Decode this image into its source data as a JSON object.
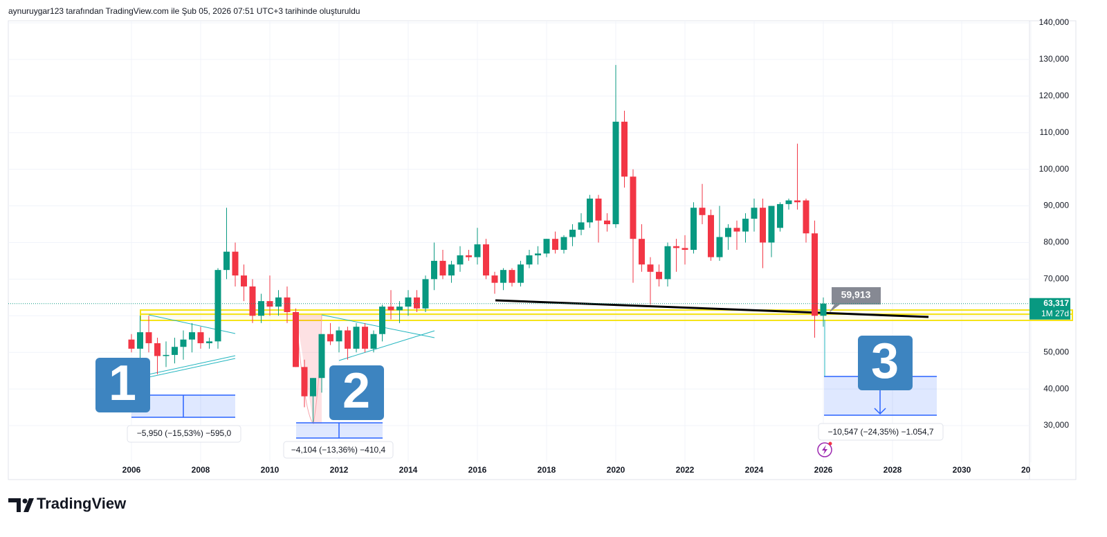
{
  "header": {
    "text": "aynuruygar123 tarafından TradingView.com ile Şub 05, 2026 07:51 UTC+3 tarihinde oluşturuldu"
  },
  "footer": {
    "logo": "TradingView"
  },
  "chart_data": {
    "type": "candlestick",
    "up_color": "#089981",
    "down_color": "#f23645",
    "grid": true,
    "x": [
      2006,
      2006.25,
      2006.5,
      2006.75,
      2007,
      2007.25,
      2007.5,
      2007.75,
      2008,
      2008.25,
      2008.5,
      2008.75,
      2009,
      2009.25,
      2009.5,
      2009.75,
      2010,
      2010.25,
      2010.5,
      2010.75,
      2011,
      2011.25,
      2011.5,
      2011.75,
      2012,
      2012.25,
      2012.5,
      2012.75,
      2013,
      2013.25,
      2013.5,
      2013.75,
      2014,
      2014.25,
      2014.5,
      2014.75,
      2015,
      2015.25,
      2015.5,
      2015.75,
      2016,
      2016.25,
      2016.5,
      2016.75,
      2017,
      2017.25,
      2017.5,
      2017.75,
      2018,
      2018.25,
      2018.5,
      2018.75,
      2019,
      2019.25,
      2019.5,
      2019.75,
      2020,
      2020.25,
      2020.5,
      2020.75,
      2021,
      2021.25,
      2021.5,
      2021.75,
      2022,
      2022.25,
      2022.5,
      2022.75,
      2023,
      2023.25,
      2023.5,
      2023.75,
      2024,
      2024.25,
      2024.5,
      2024.75,
      2025,
      2025.25,
      2025.5,
      2025.75,
      2026
    ],
    "open": [
      53500,
      51000,
      55500,
      52500,
      49000,
      49300,
      51500,
      53500,
      55500,
      52500,
      53000,
      72500,
      77500,
      71000,
      68000,
      60000,
      64000,
      62500,
      65000,
      61000,
      46000,
      38000,
      43000,
      55000,
      53000,
      56000,
      51000,
      57000,
      51000,
      55000,
      62500,
      61500,
      62500,
      65000,
      62000,
      70000,
      75000,
      71000,
      74000,
      76500,
      76000,
      79500,
      71000,
      69000,
      72500,
      69000,
      74000,
      76500,
      77000,
      81000,
      78000,
      81500,
      83500,
      85500,
      92000,
      86000,
      85000,
      113000,
      98000,
      81000,
      74000,
      72000,
      70000,
      79000,
      78500,
      78000,
      89500,
      87500,
      76000,
      81500,
      84000,
      83000,
      86500,
      89500,
      80000,
      84000,
      90500,
      91500,
      91500,
      82500,
      60000
    ],
    "high": [
      55000,
      60000,
      60000,
      54000,
      53000,
      54000,
      56000,
      58000,
      57000,
      54000,
      73000,
      89500,
      80000,
      74000,
      70000,
      66000,
      71000,
      67000,
      68000,
      62000,
      48000,
      43000,
      55000,
      58000,
      57000,
      57000,
      58000,
      58000,
      56000,
      63000,
      67000,
      64000,
      67000,
      67000,
      71000,
      80000,
      78000,
      75000,
      79000,
      78000,
      84000,
      81000,
      72000,
      73000,
      73000,
      75000,
      78000,
      79000,
      81000,
      83000,
      82000,
      85000,
      88000,
      93000,
      93000,
      88000,
      128500,
      116000,
      100000,
      85000,
      76000,
      74000,
      80000,
      81000,
      82000,
      91000,
      96000,
      89000,
      90000,
      85000,
      86000,
      88000,
      92000,
      92000,
      90000,
      91000,
      92000,
      107000,
      92000,
      86000,
      65000
    ],
    "low": [
      50000,
      48000,
      50000,
      44000,
      46000,
      47000,
      48000,
      50000,
      51000,
      51000,
      51000,
      70000,
      68000,
      64000,
      58000,
      58000,
      60000,
      60000,
      58000,
      46000,
      35000,
      31000,
      39000,
      52000,
      50000,
      48000,
      50000,
      50000,
      50000,
      53000,
      59000,
      58000,
      60000,
      61000,
      61000,
      67000,
      70000,
      69000,
      72000,
      75000,
      74000,
      70000,
      66000,
      67000,
      68000,
      68000,
      73000,
      74000,
      76000,
      77000,
      77000,
      79000,
      82000,
      84000,
      80000,
      83000,
      84000,
      95000,
      69000,
      72000,
      63000,
      68000,
      68000,
      72000,
      74000,
      77000,
      85000,
      75000,
      75000,
      78000,
      78000,
      80000,
      83000,
      73000,
      76000,
      83000,
      89000,
      89000,
      80000,
      54000,
      57000
    ],
    "close": [
      51000,
      55500,
      52500,
      49000,
      49300,
      51500,
      53500,
      55500,
      52500,
      53000,
      72500,
      77500,
      71000,
      68000,
      60000,
      64000,
      62500,
      65000,
      61000,
      46000,
      38000,
      43000,
      55000,
      53000,
      56000,
      51000,
      57000,
      51000,
      55000,
      62500,
      61500,
      62500,
      65000,
      62000,
      70000,
      75000,
      71000,
      74000,
      76500,
      76000,
      79500,
      71000,
      69000,
      72500,
      69000,
      74000,
      76500,
      77000,
      81000,
      78000,
      81500,
      83500,
      85500,
      92000,
      86000,
      85000,
      113000,
      98000,
      81000,
      74000,
      72000,
      70000,
      79000,
      78500,
      78000,
      89500,
      87500,
      76000,
      81500,
      84000,
      83000,
      86500,
      89500,
      80000,
      90000,
      90500,
      91500,
      91000,
      82500,
      60000,
      63317
    ],
    "xlim": [
      2002.44,
      2031.96
    ],
    "xticks": [
      2006,
      2008,
      2010,
      2012,
      2014,
      2016,
      2018,
      2020,
      2022,
      2024,
      2026,
      2028,
      2030,
      {
        "value": 2032,
        "label": "20"
      }
    ],
    "ylim": [
      15260,
      140567
    ],
    "yticks": [
      {
        "value": 30000,
        "label": "30,000"
      },
      {
        "value": 40000,
        "label": "40,000"
      },
      {
        "value": 50000,
        "label": "50,000"
      },
      {
        "value": 60000,
        "label": "60,000"
      },
      {
        "value": 70000,
        "label": "70,000"
      },
      {
        "value": 80000,
        "label": "80,000"
      },
      {
        "value": 90000,
        "label": "90,000"
      },
      {
        "value": 100000,
        "label": "100,000"
      },
      {
        "value": 110000,
        "label": "110,000"
      },
      {
        "value": 120000,
        "label": "120,000"
      },
      {
        "value": 130000,
        "label": "130,000"
      },
      {
        "value": 140000,
        "label": "140,000"
      }
    ],
    "last_price": {
      "value": 63317,
      "label": "63,317",
      "countdown": "1M 27d"
    },
    "callout": {
      "value": 59913,
      "label": "59,913"
    },
    "markers": [
      "1",
      "2",
      "3"
    ],
    "measurements": [
      "−5,950 (−15,53%) −595,0",
      "−4,104 (−13,36%) −410,4",
      "−10,547 (−24,35%) −1.054,7"
    ]
  }
}
